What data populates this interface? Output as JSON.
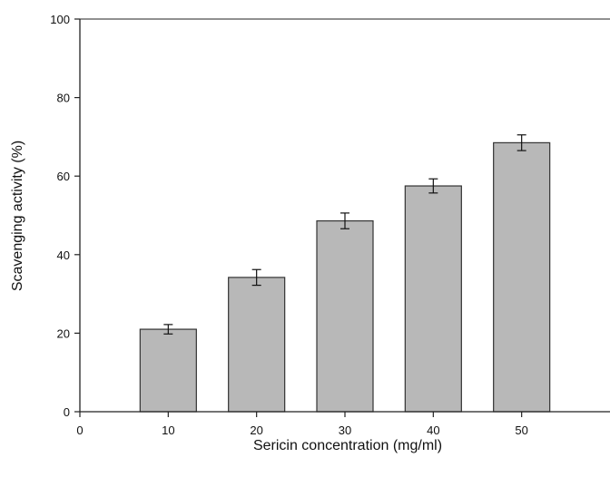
{
  "chart_data": {
    "type": "bar",
    "title": "",
    "xlabel": "Sericin concentration (mg/ml)",
    "ylabel": "Scavenging activity (%)",
    "x_ticks": [
      0,
      10,
      20,
      30,
      40,
      50
    ],
    "y_ticks": [
      0,
      20,
      40,
      60,
      80,
      100
    ],
    "xlim": [
      0,
      60
    ],
    "ylim": [
      0,
      100
    ],
    "grid": false,
    "x": [
      10,
      20,
      30,
      40,
      50
    ],
    "values": [
      21,
      34.2,
      48.6,
      57.5,
      68.5
    ],
    "errors": [
      1.2,
      2.0,
      2.0,
      1.8,
      2.0
    ],
    "bar_color": "#b8b8b8",
    "bar_edge_color": "#333333"
  }
}
